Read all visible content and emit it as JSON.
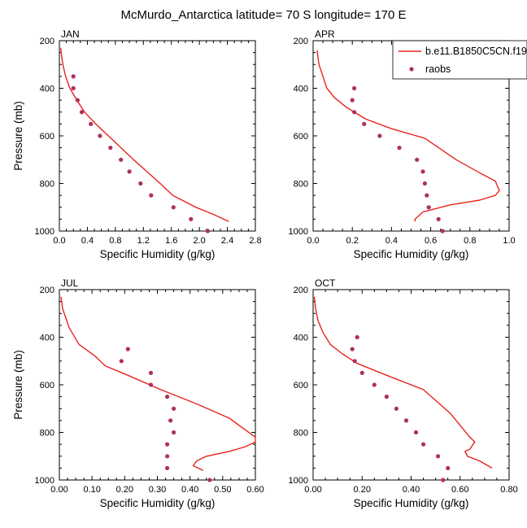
{
  "figure": {
    "title": "McMurdo_Antarctica  latitude= 70 S longitude= 170 E",
    "colors": {
      "model": "#e8231c",
      "obs": "#b0305a",
      "axis": "#000000"
    }
  },
  "legend": {
    "model_label": "b.e11.B1850C5CN.f19",
    "obs_label": "raobs"
  },
  "chart_data": [
    {
      "type": "line",
      "panel": "JAN",
      "xlabel": "Specific Humidity (g/kg)",
      "ylabel": "Pressure (mb)",
      "xlim": [
        0,
        2.8
      ],
      "ylim": [
        200,
        1000
      ],
      "y_reversed": true,
      "xticks": [
        "0.0",
        "0.4",
        "0.8",
        "1.2",
        "1.6",
        "2.0",
        "2.4",
        "2.8"
      ],
      "yticks": [
        "200",
        "400",
        "600",
        "800",
        "1000"
      ],
      "series": [
        {
          "name": "b.e11.B1850C5CN.f19",
          "kind": "line",
          "points": [
            [
              0.02,
              230
            ],
            [
              0.03,
              260
            ],
            [
              0.05,
              300
            ],
            [
              0.09,
              350
            ],
            [
              0.15,
              400
            ],
            [
              0.25,
              450
            ],
            [
              0.36,
              500
            ],
            [
              0.52,
              550
            ],
            [
              0.7,
              600
            ],
            [
              0.88,
              650
            ],
            [
              1.06,
              700
            ],
            [
              1.25,
              750
            ],
            [
              1.44,
              800
            ],
            [
              1.62,
              850
            ],
            [
              1.95,
              900
            ],
            [
              2.2,
              930
            ],
            [
              2.42,
              960
            ]
          ]
        },
        {
          "name": "raobs",
          "kind": "scatter",
          "points": [
            [
              0.2,
              350
            ],
            [
              0.2,
              400
            ],
            [
              0.26,
              450
            ],
            [
              0.32,
              500
            ],
            [
              0.45,
              550
            ],
            [
              0.58,
              600
            ],
            [
              0.73,
              650
            ],
            [
              0.88,
              700
            ],
            [
              1.0,
              750
            ],
            [
              1.16,
              800
            ],
            [
              1.31,
              850
            ],
            [
              1.63,
              900
            ],
            [
              1.88,
              950
            ],
            [
              2.12,
              1000
            ]
          ]
        }
      ]
    },
    {
      "type": "line",
      "panel": "APR",
      "xlabel": "Specific Humidity (g/kg)",
      "ylabel": "",
      "xlim": [
        0,
        1.0
      ],
      "ylim": [
        200,
        1000
      ],
      "y_reversed": true,
      "xticks": [
        "0.0",
        "0.2",
        "0.4",
        "0.6",
        "0.8",
        "1.0"
      ],
      "yticks": [
        "200",
        "400",
        "600",
        "800",
        "1000"
      ],
      "series": [
        {
          "name": "b.e11.B1850C5CN.f19",
          "kind": "line",
          "points": [
            [
              0.02,
              240
            ],
            [
              0.03,
              300
            ],
            [
              0.05,
              350
            ],
            [
              0.07,
              400
            ],
            [
              0.11,
              440
            ],
            [
              0.17,
              480
            ],
            [
              0.27,
              530
            ],
            [
              0.4,
              570
            ],
            [
              0.57,
              610
            ],
            [
              0.73,
              700
            ],
            [
              0.86,
              760
            ],
            [
              0.93,
              790
            ],
            [
              0.95,
              830
            ],
            [
              0.93,
              850
            ],
            [
              0.85,
              870
            ],
            [
              0.7,
              890
            ],
            [
              0.56,
              920
            ],
            [
              0.52,
              950
            ],
            [
              0.52,
              960
            ]
          ]
        },
        {
          "name": "raobs",
          "kind": "scatter",
          "points": [
            [
              0.21,
              400
            ],
            [
              0.2,
              450
            ],
            [
              0.21,
              500
            ],
            [
              0.26,
              550
            ],
            [
              0.34,
              600
            ],
            [
              0.44,
              650
            ],
            [
              0.53,
              700
            ],
            [
              0.56,
              750
            ],
            [
              0.57,
              800
            ],
            [
              0.58,
              850
            ],
            [
              0.59,
              900
            ],
            [
              0.64,
              950
            ],
            [
              0.66,
              1000
            ]
          ]
        }
      ]
    },
    {
      "type": "line",
      "panel": "JUL",
      "xlabel": "Specific Humidity (g/kg)",
      "ylabel": "Pressure (mb)",
      "xlim": [
        0,
        0.6
      ],
      "ylim": [
        200,
        1000
      ],
      "y_reversed": true,
      "xticks": [
        "0.00",
        "0.10",
        "0.20",
        "0.30",
        "0.40",
        "0.50",
        "0.60"
      ],
      "yticks": [
        "200",
        "400",
        "600",
        "800",
        "1000"
      ],
      "series": [
        {
          "name": "b.e11.B1850C5CN.f19",
          "kind": "line",
          "points": [
            [
              0.005,
              230
            ],
            [
              0.01,
              280
            ],
            [
              0.02,
              320
            ],
            [
              0.03,
              360
            ],
            [
              0.06,
              430
            ],
            [
              0.11,
              480
            ],
            [
              0.14,
              520
            ],
            [
              0.21,
              560
            ],
            [
              0.31,
              620
            ],
            [
              0.42,
              680
            ],
            [
              0.52,
              740
            ],
            [
              0.57,
              790
            ],
            [
              0.6,
              820
            ],
            [
              0.6,
              840
            ],
            [
              0.57,
              860
            ],
            [
              0.52,
              880
            ],
            [
              0.45,
              900
            ],
            [
              0.42,
              920
            ],
            [
              0.41,
              940
            ],
            [
              0.44,
              960
            ]
          ]
        },
        {
          "name": "raobs",
          "kind": "scatter",
          "points": [
            [
              0.21,
              450
            ],
            [
              0.19,
              500
            ],
            [
              0.28,
              550
            ],
            [
              0.28,
              600
            ],
            [
              0.33,
              650
            ],
            [
              0.35,
              700
            ],
            [
              0.34,
              750
            ],
            [
              0.35,
              800
            ],
            [
              0.33,
              850
            ],
            [
              0.33,
              900
            ],
            [
              0.33,
              950
            ],
            [
              0.46,
              1000
            ]
          ]
        }
      ]
    },
    {
      "type": "line",
      "panel": "OCT",
      "xlabel": "Specific Humidity (g/kg)",
      "ylabel": "",
      "xlim": [
        0,
        0.8
      ],
      "ylim": [
        200,
        1000
      ],
      "y_reversed": true,
      "xticks": [
        "0.00",
        "0.20",
        "0.40",
        "0.60",
        "0.80"
      ],
      "yticks": [
        "200",
        "400",
        "600",
        "800",
        "1000"
      ],
      "series": [
        {
          "name": "b.e11.B1850C5CN.f19",
          "kind": "line",
          "points": [
            [
              0.005,
              230
            ],
            [
              0.01,
              280
            ],
            [
              0.02,
              330
            ],
            [
              0.04,
              380
            ],
            [
              0.07,
              430
            ],
            [
              0.12,
              470
            ],
            [
              0.18,
              510
            ],
            [
              0.3,
              560
            ],
            [
              0.45,
              620
            ],
            [
              0.56,
              720
            ],
            [
              0.64,
              820
            ],
            [
              0.66,
              840
            ],
            [
              0.64,
              870
            ],
            [
              0.62,
              880
            ],
            [
              0.63,
              900
            ],
            [
              0.68,
              920
            ],
            [
              0.73,
              950
            ]
          ]
        },
        {
          "name": "raobs",
          "kind": "scatter",
          "points": [
            [
              0.18,
              400
            ],
            [
              0.16,
              450
            ],
            [
              0.17,
              500
            ],
            [
              0.2,
              550
            ],
            [
              0.25,
              600
            ],
            [
              0.3,
              650
            ],
            [
              0.34,
              700
            ],
            [
              0.38,
              750
            ],
            [
              0.42,
              800
            ],
            [
              0.45,
              850
            ],
            [
              0.51,
              900
            ],
            [
              0.55,
              950
            ],
            [
              0.53,
              1000
            ]
          ]
        }
      ]
    }
  ]
}
